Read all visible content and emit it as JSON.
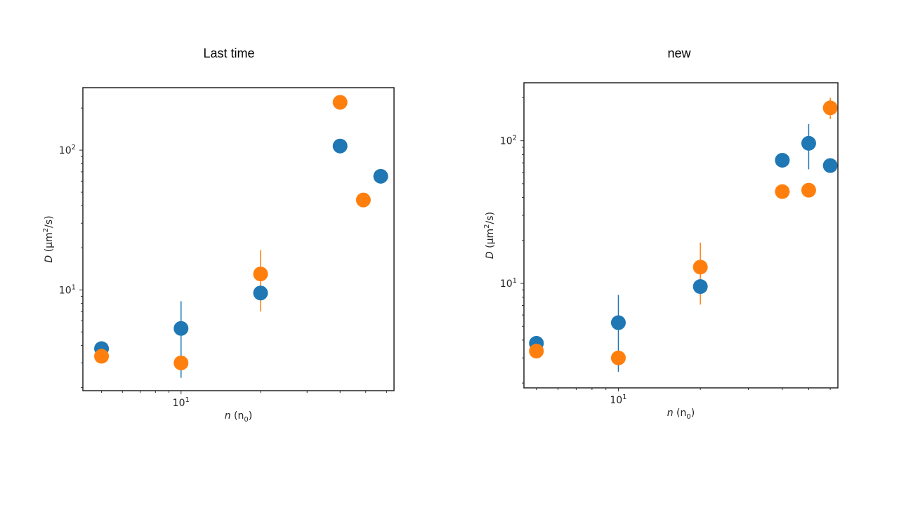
{
  "chart_data": [
    {
      "type": "scatter",
      "title": "Last time",
      "xlabel_italic": "n",
      "xlabel_rest": " (n",
      "xlabel_sub": "0",
      "xlabel_close": ")",
      "ylabel_italic": "D",
      "ylabel_rest": " (μm",
      "ylabel_sup": "2",
      "ylabel_close": "/s)",
      "xscale": "log",
      "yscale": "log",
      "xlim": [
        4.25,
        64
      ],
      "ylim": [
        1.9,
        280
      ],
      "grid": false,
      "x_tick_labels": [
        {
          "base": "10",
          "exp": "1",
          "value": 10
        }
      ],
      "y_tick_labels": [
        {
          "base": "10",
          "exp": "1",
          "value": 10
        },
        {
          "base": "10",
          "exp": "2",
          "value": 100
        }
      ],
      "series": [
        {
          "color": "#1f77b4",
          "points": [
            {
              "x": 5,
              "y": 3.8
            },
            {
              "x": 10,
              "y": 5.3,
              "ylo": 2.35,
              "yhi": 8.3
            },
            {
              "x": 20,
              "y": 9.5
            },
            {
              "x": 40,
              "y": 107
            },
            {
              "x": 57,
              "y": 65
            }
          ]
        },
        {
          "color": "#ff7f0e",
          "points": [
            {
              "x": 5,
              "y": 3.35
            },
            {
              "x": 10,
              "y": 3.0
            },
            {
              "x": 20,
              "y": 13,
              "ylo": 7.0,
              "yhi": 19.3
            },
            {
              "x": 40,
              "y": 220
            },
            {
              "x": 49,
              "y": 44
            }
          ]
        }
      ]
    },
    {
      "type": "scatter",
      "title": "new",
      "xlabel_italic": "n",
      "xlabel_rest": " (n",
      "xlabel_sub": "0",
      "xlabel_close": ")",
      "ylabel_italic": "D",
      "ylabel_rest": " (μm",
      "ylabel_sup": "2",
      "ylabel_close": "/s)",
      "xscale": "log",
      "yscale": "log",
      "xlim": [
        4.5,
        64
      ],
      "ylim": [
        1.85,
        255
      ],
      "grid": false,
      "x_tick_labels": [
        {
          "base": "10",
          "exp": "1",
          "value": 10
        }
      ],
      "y_tick_labels": [
        {
          "base": "10",
          "exp": "1",
          "value": 10
        },
        {
          "base": "10",
          "exp": "2",
          "value": 100
        }
      ],
      "series": [
        {
          "color": "#1f77b4",
          "points": [
            {
              "x": 5,
              "y": 3.8
            },
            {
              "x": 10,
              "y": 5.3,
              "ylo": 2.4,
              "yhi": 8.3
            },
            {
              "x": 20,
              "y": 9.5
            },
            {
              "x": 40,
              "y": 73
            },
            {
              "x": 50,
              "y": 96,
              "ylo": 63,
              "yhi": 131
            },
            {
              "x": 60,
              "y": 67
            }
          ]
        },
        {
          "color": "#ff7f0e",
          "points": [
            {
              "x": 5,
              "y": 3.35
            },
            {
              "x": 10,
              "y": 3.0
            },
            {
              "x": 20,
              "y": 13,
              "ylo": 7.1,
              "yhi": 19.3
            },
            {
              "x": 40,
              "y": 44
            },
            {
              "x": 50,
              "y": 45
            },
            {
              "x": 60,
              "y": 170,
              "ylo": 142,
              "yhi": 200
            }
          ]
        }
      ]
    }
  ]
}
